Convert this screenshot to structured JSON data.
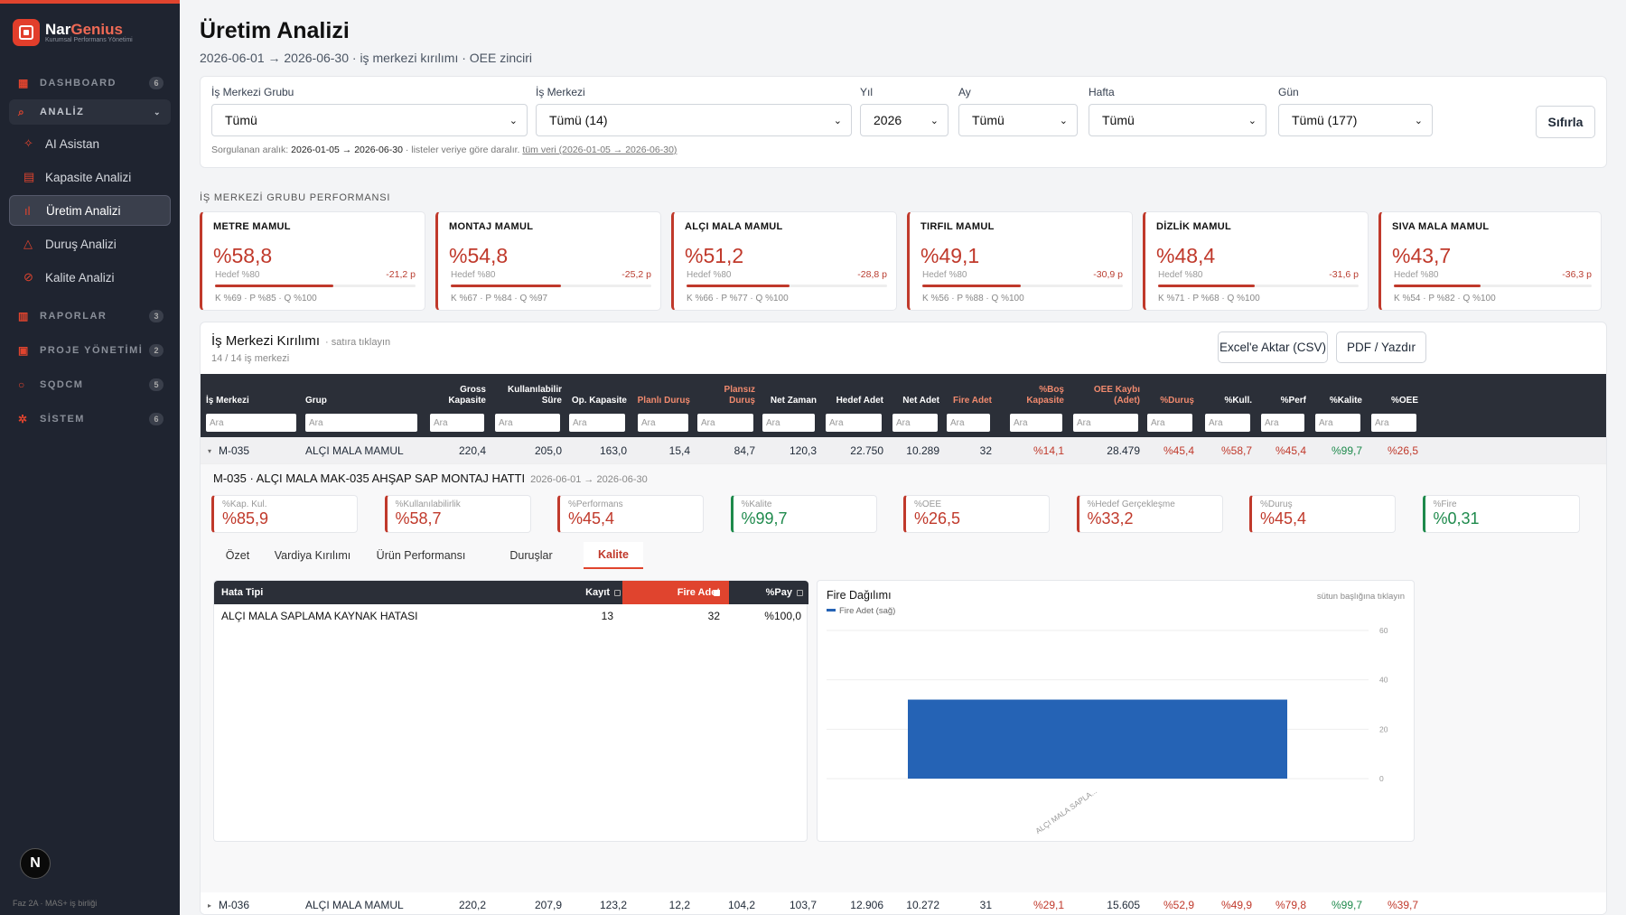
{
  "brand": {
    "name_a": "Nar",
    "name_b": "Genius",
    "sub": "Kurumsal Performans Yönetimi"
  },
  "nav": {
    "dashboard": {
      "label": "DASHBOARD",
      "count": "6"
    },
    "analiz": {
      "label": "ANALİZ"
    },
    "items": [
      "AI Asistan",
      "Kapasite Analizi",
      "Üretim Analizi",
      "Duruş Analizi",
      "Kalite Analizi"
    ],
    "raporlar": {
      "label": "RAPORLAR",
      "count": "3"
    },
    "proje": {
      "label": "PROJE YÖNETİMİ",
      "count": "2"
    },
    "sqdcm": {
      "label": "SQDCM",
      "count": "5"
    },
    "sistem": {
      "label": "SİSTEM",
      "count": "6"
    }
  },
  "footer": {
    "badge": "N",
    "text": "Faz 2A · MAS+ iş birliği"
  },
  "page": {
    "title": "Üretim Analizi",
    "subtitle": "2026-06-01 → 2026-06-30 · iş merkezi kırılımı · OEE zinciri"
  },
  "filters": {
    "labels": [
      "İş Merkezi Grubu",
      "İş Merkezi",
      "Yıl",
      "Ay",
      "Hafta",
      "Gün"
    ],
    "values": [
      "Tümü",
      "Tümü (14)",
      "2026",
      "Tümü",
      "Tümü",
      "Tümü (177)"
    ],
    "reset": "Sıfırla",
    "range_prefix": "Sorgulanan aralık:",
    "range_value": "2026-01-05 → 2026-06-30",
    "range_mid": "· listeler veriye göre daralır.",
    "range_link": "tüm veri (2026-01-05 → 2026-06-30)"
  },
  "groups_title": "İŞ MERKEZİ GRUBU PERFORMANSI",
  "groups": [
    {
      "name": "METRE MAMUL",
      "pct": "%58,8",
      "target": "Hedef %80",
      "diff": "-21,2 p",
      "fill": 0.588,
      "kpq": "K %69 · P %85 · Q %100"
    },
    {
      "name": "MONTAJ MAMUL",
      "pct": "%54,8",
      "target": "Hedef %80",
      "diff": "-25,2 p",
      "fill": 0.548,
      "kpq": "K %67 · P %84 · Q %97"
    },
    {
      "name": "ALÇI MALA MAMUL",
      "pct": "%51,2",
      "target": "Hedef %80",
      "diff": "-28,8 p",
      "fill": 0.512,
      "kpq": "K %66 · P %77 · Q %100"
    },
    {
      "name": "TIRFIL MAMUL",
      "pct": "%49,1",
      "target": "Hedef %80",
      "diff": "-30,9 p",
      "fill": 0.491,
      "kpq": "K %56 · P %88 · Q %100"
    },
    {
      "name": "DİZLİK MAMUL",
      "pct": "%48,4",
      "target": "Hedef %80",
      "diff": "-31,6 p",
      "fill": 0.484,
      "kpq": "K %71 · P %68 · Q %100"
    },
    {
      "name": "SIVA MALA MAMUL",
      "pct": "%43,7",
      "target": "Hedef %80",
      "diff": "-36,3 p",
      "fill": 0.437,
      "kpq": "K %54 · P %82 · Q %100"
    }
  ],
  "breakdown": {
    "title": "İş Merkezi Kırılımı",
    "hint": "· satıra tıklayın",
    "count": "14 / 14 iş merkezi",
    "export_csv": "Excel'e Aktar (CSV)",
    "export_pdf": "PDF / Yazdır",
    "columns": [
      "İş Merkezi",
      "Grup",
      "Gross Kapasite",
      "Kullanılabilir Süre",
      "Op. Kapasite",
      "Planlı Duruş",
      "Plansız Duruş",
      "Net Zaman",
      "Hedef Adet",
      "Net Adet",
      "Fire Adet",
      "%Boş Kapasite",
      "OEE Kaybı (Adet)",
      "%Duruş",
      "%Kull.",
      "%Perf",
      "%Kalite",
      "%OEE"
    ],
    "search_placeholder": "Ara",
    "rows": [
      [
        "M-035",
        "ALÇI MALA MAMUL",
        "220,4",
        "205,0",
        "163,0",
        "15,4",
        "84,7",
        "120,3",
        "22.750",
        "10.289",
        "32",
        "%14,1",
        "28.479",
        "%45,4",
        "%58,7",
        "%45,4",
        "%99,7",
        "%26,5"
      ],
      [
        "M-036",
        "ALÇI MALA MAMUL",
        "220,2",
        "207,9",
        "123,2",
        "12,2",
        "104,2",
        "103,7",
        "12.906",
        "10.272",
        "31",
        "%29,1",
        "15.605",
        "%52,9",
        "%49,9",
        "%79,8",
        "%99,7",
        "%39,7"
      ]
    ]
  },
  "detail": {
    "title": "M-035 · ALÇI MALA MAK-035 AHŞAP SAP MONTAJ HATTI",
    "range": "2026-06-01 → 2026-06-30",
    "kpis": [
      {
        "k": "%Kap. Kul.",
        "v": "%85,9"
      },
      {
        "k": "%Kullanılabilirlik",
        "v": "%58,7"
      },
      {
        "k": "%Performans",
        "v": "%45,4"
      },
      {
        "k": "%Kalite",
        "v": "%99,7"
      },
      {
        "k": "%OEE",
        "v": "%26,5"
      },
      {
        "k": "%Hedef Gerçekleşme",
        "v": "%33,2"
      },
      {
        "k": "%Duruş",
        "v": "%45,4"
      },
      {
        "k": "%Fire",
        "v": "%0,31"
      }
    ],
    "tabs": [
      "Özet",
      "Vardiya Kırılımı",
      "Ürün Performansı",
      "Duruşlar",
      "Kalite"
    ],
    "defect_table": {
      "headers": [
        "Hata Tipi",
        "Kayıt",
        "Fire Adet",
        "%Pay"
      ],
      "row": [
        "ALÇI MALA SAPLAMA KAYNAK HATASI",
        "13",
        "32",
        "%100,0"
      ]
    }
  },
  "chart_data": {
    "type": "bar",
    "title": "Fire Dağılımı",
    "hint": "sütun başlığına tıklayın",
    "categories": [
      "ALÇI MALA SAPLA..."
    ],
    "series": [
      {
        "name": "Fire Adet (sağ)",
        "values": [
          32
        ],
        "color": "#2563b5"
      }
    ],
    "ylim": [
      0,
      60
    ],
    "yticks": [
      "60",
      "40",
      "20",
      "0"
    ],
    "legend": "top-left"
  }
}
